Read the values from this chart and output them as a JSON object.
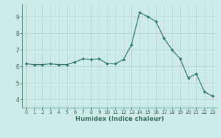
{
  "x": [
    0,
    1,
    2,
    3,
    4,
    5,
    6,
    7,
    8,
    9,
    10,
    11,
    12,
    13,
    14,
    15,
    16,
    17,
    18,
    19,
    20,
    21,
    22,
    23
  ],
  "y": [
    6.15,
    6.1,
    6.1,
    6.15,
    6.1,
    6.1,
    6.25,
    6.45,
    6.4,
    6.45,
    6.15,
    6.15,
    6.4,
    7.3,
    9.25,
    9.0,
    8.7,
    7.7,
    7.0,
    6.45,
    5.3,
    5.55,
    4.45,
    4.2
  ],
  "line_color": "#2d7b6e",
  "marker": "D",
  "marker_size": 2.0,
  "bg_color": "#ceeaea",
  "grid_color": "#b8d4d4",
  "xlabel": "Humidex (Indice chaleur)",
  "ylim": [
    3.5,
    9.75
  ],
  "xlim": [
    -0.5,
    23.5
  ],
  "yticks": [
    4,
    5,
    6,
    7,
    8,
    9
  ],
  "xticks": [
    0,
    1,
    2,
    3,
    4,
    5,
    6,
    7,
    8,
    9,
    10,
    11,
    12,
    13,
    14,
    15,
    16,
    17,
    18,
    19,
    20,
    21,
    22,
    23
  ],
  "tick_color": "#2d6b5e",
  "label_color": "#2d6b5e",
  "axis_color": "#5a9a8a",
  "xlabel_fontsize": 6.5,
  "xtick_fontsize": 5.0,
  "ytick_fontsize": 6.0
}
